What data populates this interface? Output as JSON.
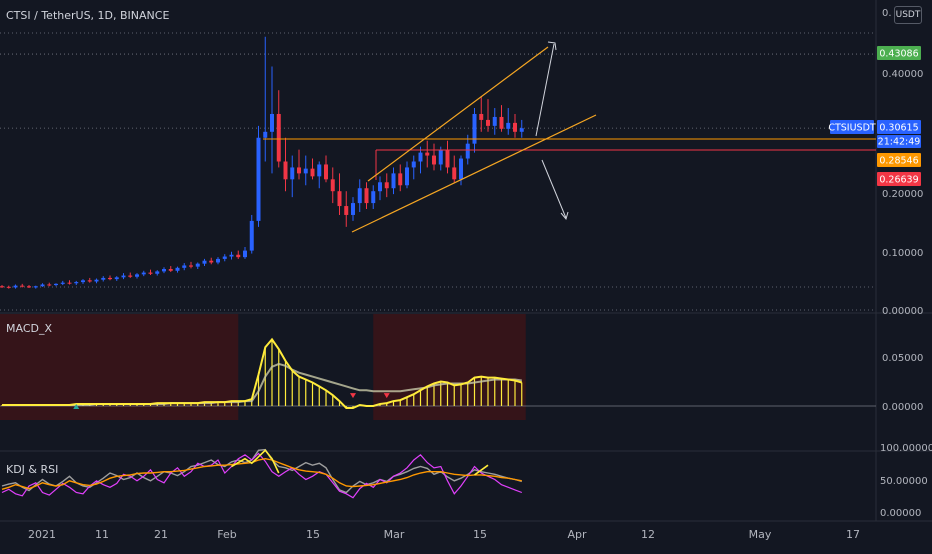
{
  "header": {
    "title": "CTSI / TetherUS, 1D, BINANCE",
    "currency_button": "USDT"
  },
  "panes": {
    "macd_title": "MACD_X",
    "kdj_title": "KDJ & RSI"
  },
  "price_tags": [
    {
      "text": "0.43086",
      "color": "#4caf50"
    },
    {
      "text": "CTSIUSDT",
      "color": "#2962ff"
    },
    {
      "text": "0.30615",
      "color": "#2962ff"
    },
    {
      "text": "21:42:49",
      "color": "#2962ff"
    },
    {
      "text": "0.28546",
      "color": "#ff9800"
    },
    {
      "text": "0.26639",
      "color": "#f23645"
    }
  ],
  "chart_data": [
    {
      "type": "candlestick",
      "pane": "price",
      "ylim": [
        0,
        0.5
      ],
      "y_ticks": [
        "0.00000",
        "0.10000",
        "0.20000",
        "0.40000"
      ],
      "x_ticks": [
        "2021",
        "11",
        "21",
        "Feb",
        "15",
        "Mar",
        "15",
        "Apr",
        "12",
        "May",
        "17"
      ],
      "x_tick_days": [
        0,
        10,
        20,
        31,
        45,
        59,
        73,
        90,
        101,
        120,
        136
      ],
      "candles": [
        [
          0.04,
          0.042,
          0.037,
          0.039
        ],
        [
          0.039,
          0.041,
          0.036,
          0.038
        ],
        [
          0.038,
          0.043,
          0.036,
          0.041
        ],
        [
          0.041,
          0.044,
          0.038,
          0.04
        ],
        [
          0.04,
          0.042,
          0.037,
          0.038
        ],
        [
          0.038,
          0.041,
          0.036,
          0.04
        ],
        [
          0.04,
          0.045,
          0.039,
          0.043
        ],
        [
          0.043,
          0.046,
          0.04,
          0.042
        ],
        [
          0.042,
          0.045,
          0.04,
          0.044
        ],
        [
          0.044,
          0.049,
          0.042,
          0.046
        ],
        [
          0.046,
          0.05,
          0.043,
          0.045
        ],
        [
          0.045,
          0.049,
          0.042,
          0.047
        ],
        [
          0.047,
          0.052,
          0.044,
          0.05
        ],
        [
          0.05,
          0.054,
          0.046,
          0.048
        ],
        [
          0.048,
          0.053,
          0.045,
          0.051
        ],
        [
          0.051,
          0.057,
          0.048,
          0.054
        ],
        [
          0.054,
          0.058,
          0.05,
          0.052
        ],
        [
          0.052,
          0.057,
          0.049,
          0.055
        ],
        [
          0.055,
          0.062,
          0.052,
          0.058
        ],
        [
          0.058,
          0.063,
          0.054,
          0.056
        ],
        [
          0.056,
          0.062,
          0.053,
          0.06
        ],
        [
          0.06,
          0.066,
          0.057,
          0.063
        ],
        [
          0.063,
          0.068,
          0.059,
          0.061
        ],
        [
          0.061,
          0.067,
          0.058,
          0.065
        ],
        [
          0.065,
          0.072,
          0.062,
          0.069
        ],
        [
          0.069,
          0.074,
          0.064,
          0.066
        ],
        [
          0.066,
          0.073,
          0.063,
          0.071
        ],
        [
          0.071,
          0.079,
          0.067,
          0.075
        ],
        [
          0.075,
          0.081,
          0.07,
          0.073
        ],
        [
          0.073,
          0.08,
          0.069,
          0.078
        ],
        [
          0.078,
          0.086,
          0.074,
          0.083
        ],
        [
          0.083,
          0.088,
          0.077,
          0.08
        ],
        [
          0.08,
          0.089,
          0.077,
          0.086
        ],
        [
          0.086,
          0.094,
          0.082,
          0.09
        ],
        [
          0.09,
          0.098,
          0.085,
          0.093
        ],
        [
          0.093,
          0.1,
          0.086,
          0.089
        ],
        [
          0.089,
          0.106,
          0.086,
          0.1
        ],
        [
          0.1,
          0.16,
          0.095,
          0.15
        ],
        [
          0.15,
          0.31,
          0.14,
          0.29
        ],
        [
          0.29,
          0.46,
          0.25,
          0.3
        ],
        [
          0.3,
          0.41,
          0.23,
          0.33
        ],
        [
          0.33,
          0.37,
          0.24,
          0.25
        ],
        [
          0.25,
          0.29,
          0.2,
          0.22
        ],
        [
          0.22,
          0.26,
          0.19,
          0.24
        ],
        [
          0.24,
          0.27,
          0.22,
          0.23
        ],
        [
          0.23,
          0.26,
          0.21,
          0.238
        ],
        [
          0.238,
          0.255,
          0.22,
          0.225
        ],
        [
          0.225,
          0.25,
          0.205,
          0.245
        ],
        [
          0.245,
          0.26,
          0.215,
          0.22
        ],
        [
          0.22,
          0.24,
          0.18,
          0.2
        ],
        [
          0.2,
          0.23,
          0.16,
          0.175
        ],
        [
          0.175,
          0.2,
          0.14,
          0.16
        ],
        [
          0.16,
          0.19,
          0.15,
          0.18
        ],
        [
          0.18,
          0.22,
          0.165,
          0.205
        ],
        [
          0.205,
          0.215,
          0.17,
          0.18
        ],
        [
          0.18,
          0.21,
          0.17,
          0.2
        ],
        [
          0.2,
          0.225,
          0.185,
          0.215
        ],
        [
          0.215,
          0.23,
          0.19,
          0.205
        ],
        [
          0.205,
          0.24,
          0.195,
          0.23
        ],
        [
          0.23,
          0.245,
          0.2,
          0.21
        ],
        [
          0.21,
          0.25,
          0.205,
          0.24
        ],
        [
          0.24,
          0.26,
          0.22,
          0.25
        ],
        [
          0.25,
          0.275,
          0.23,
          0.265
        ],
        [
          0.265,
          0.285,
          0.24,
          0.26
        ],
        [
          0.26,
          0.28,
          0.235,
          0.245
        ],
        [
          0.245,
          0.275,
          0.235,
          0.27
        ],
        [
          0.27,
          0.285,
          0.23,
          0.24
        ],
        [
          0.24,
          0.26,
          0.215,
          0.22
        ],
        [
          0.22,
          0.26,
          0.21,
          0.255
        ],
        [
          0.255,
          0.295,
          0.245,
          0.28
        ],
        [
          0.28,
          0.34,
          0.265,
          0.33
        ],
        [
          0.33,
          0.36,
          0.3,
          0.32
        ],
        [
          0.32,
          0.355,
          0.3,
          0.31
        ],
        [
          0.31,
          0.34,
          0.295,
          0.325
        ],
        [
          0.325,
          0.345,
          0.3,
          0.305
        ],
        [
          0.305,
          0.34,
          0.295,
          0.315
        ],
        [
          0.315,
          0.33,
          0.29,
          0.3
        ],
        [
          0.3,
          0.32,
          0.29,
          0.306
        ]
      ],
      "horizontal_levels": [
        0.43086,
        0.28546,
        0.26639
      ]
    },
    {
      "type": "line",
      "pane": "MACD_X",
      "ylim": [
        -0.01,
        0.07
      ],
      "y_ticks": [
        "0.00000",
        "0.05000"
      ],
      "series": [
        {
          "values": [
            0.001,
            0.001,
            0.001,
            0.001,
            0.001,
            0.001,
            0.001,
            0.001,
            0.001,
            0.001,
            0.001,
            0.002,
            0.002,
            0.002,
            0.002,
            0.002,
            0.002,
            0.002,
            0.002,
            0.002,
            0.002,
            0.002,
            0.002,
            0.003,
            0.003,
            0.003,
            0.003,
            0.003,
            0.003,
            0.003,
            0.004,
            0.004,
            0.004,
            0.004,
            0.005,
            0.005,
            0.005,
            0.007,
            0.032,
            0.06,
            0.068,
            0.058,
            0.046,
            0.036,
            0.03,
            0.027,
            0.024,
            0.02,
            0.016,
            0.011,
            0.005,
            -0.002,
            -0.002,
            0.001,
            0.0,
            0.0,
            0.002,
            0.003,
            0.005,
            0.006,
            0.009,
            0.012,
            0.016,
            0.02,
            0.023,
            0.025,
            0.024,
            0.021,
            0.022,
            0.024,
            0.029,
            0.03,
            0.029,
            0.029,
            0.028,
            0.027,
            0.026,
            0.024
          ]
        },
        {
          "values": [
            0.001,
            0.001,
            0.001,
            0.001,
            0.001,
            0.001,
            0.001,
            0.001,
            0.001,
            0.001,
            0.001,
            0.001,
            0.001,
            0.001,
            0.002,
            0.002,
            0.002,
            0.002,
            0.002,
            0.002,
            0.002,
            0.002,
            0.002,
            0.002,
            0.002,
            0.003,
            0.003,
            0.003,
            0.003,
            0.003,
            0.003,
            0.003,
            0.004,
            0.004,
            0.004,
            0.004,
            0.005,
            0.005,
            0.015,
            0.03,
            0.04,
            0.043,
            0.041,
            0.037,
            0.034,
            0.032,
            0.03,
            0.028,
            0.026,
            0.024,
            0.022,
            0.02,
            0.018,
            0.016,
            0.016,
            0.015,
            0.015,
            0.015,
            0.015,
            0.015,
            0.016,
            0.017,
            0.018,
            0.019,
            0.021,
            0.022,
            0.023,
            0.023,
            0.023,
            0.023,
            0.024,
            0.025,
            0.026,
            0.027,
            0.027,
            0.027,
            0.027,
            0.026
          ]
        }
      ]
    },
    {
      "type": "line",
      "pane": "KDJ & RSI",
      "ylim": [
        -10,
        125
      ],
      "y_ticks": [
        "0.00000",
        "50.00000",
        "100.00000"
      ],
      "series": [
        {
          "values": [
            40,
            43,
            45,
            38,
            33,
            42,
            50,
            43,
            40,
            47,
            55,
            45,
            40,
            38,
            45,
            52,
            60,
            56,
            50,
            53,
            60,
            53,
            48,
            55,
            62,
            60,
            56,
            62,
            70,
            72,
            76,
            80,
            73,
            70,
            77,
            80,
            76,
            80,
            95,
            96,
            80,
            70,
            68,
            64,
            70,
            76,
            72,
            75,
            68,
            50,
            34,
            30,
            40,
            47,
            42,
            45,
            50,
            47,
            55,
            58,
            62,
            67,
            70,
            67,
            58,
            62,
            54,
            48,
            52,
            58,
            65,
            62,
            60,
            58,
            55,
            52,
            50,
            47
          ]
        },
        {
          "values": [
            30,
            35,
            28,
            25,
            40,
            45,
            30,
            26,
            35,
            44,
            38,
            30,
            28,
            40,
            48,
            42,
            38,
            44,
            58,
            55,
            48,
            55,
            65,
            50,
            45,
            60,
            68,
            55,
            62,
            75,
            70,
            72,
            80,
            60,
            70,
            82,
            88,
            80,
            90,
            78,
            62,
            55,
            62,
            68,
            58,
            50,
            55,
            62,
            58,
            45,
            32,
            28,
            22,
            36,
            44,
            38,
            50,
            45,
            55,
            60,
            68,
            80,
            88,
            76,
            68,
            70,
            48,
            28,
            40,
            55,
            70,
            60,
            55,
            50,
            42,
            38,
            34,
            30
          ]
        },
        {
          "values": [
            35,
            38,
            42,
            39,
            36,
            40,
            45,
            42,
            40,
            42,
            48,
            45,
            42,
            41,
            43,
            47,
            52,
            55,
            56,
            57,
            59,
            60,
            60,
            61,
            62,
            62,
            63,
            64,
            66,
            68,
            70,
            71,
            72,
            72,
            73,
            74,
            75,
            76,
            80,
            82,
            80,
            76,
            72,
            68,
            65,
            63,
            62,
            61,
            58,
            52,
            45,
            40,
            39,
            40,
            41,
            42,
            44,
            46,
            48,
            50,
            53,
            57,
            60,
            62,
            62,
            62,
            60,
            58,
            57,
            56,
            57,
            57,
            56,
            55,
            53,
            52,
            50,
            48
          ]
        },
        {
          "values": [
            40,
            42,
            38,
            35,
            36,
            40,
            44,
            41,
            38,
            41,
            45,
            42,
            38,
            39,
            44,
            48,
            50,
            48,
            46,
            48,
            52,
            50,
            49,
            52,
            56,
            55,
            54,
            58,
            62,
            63,
            66,
            68,
            64,
            63,
            67,
            69,
            70,
            72,
            80,
            85,
            76,
            68,
            66,
            64,
            65,
            68,
            66,
            67,
            62,
            50,
            40,
            36,
            40,
            44,
            42,
            44,
            47,
            46,
            50,
            52,
            56,
            60,
            62,
            60,
            55,
            56,
            50,
            45,
            48,
            52,
            57,
            55,
            53,
            51,
            49,
            47,
            46,
            45
          ]
        }
      ]
    }
  ]
}
